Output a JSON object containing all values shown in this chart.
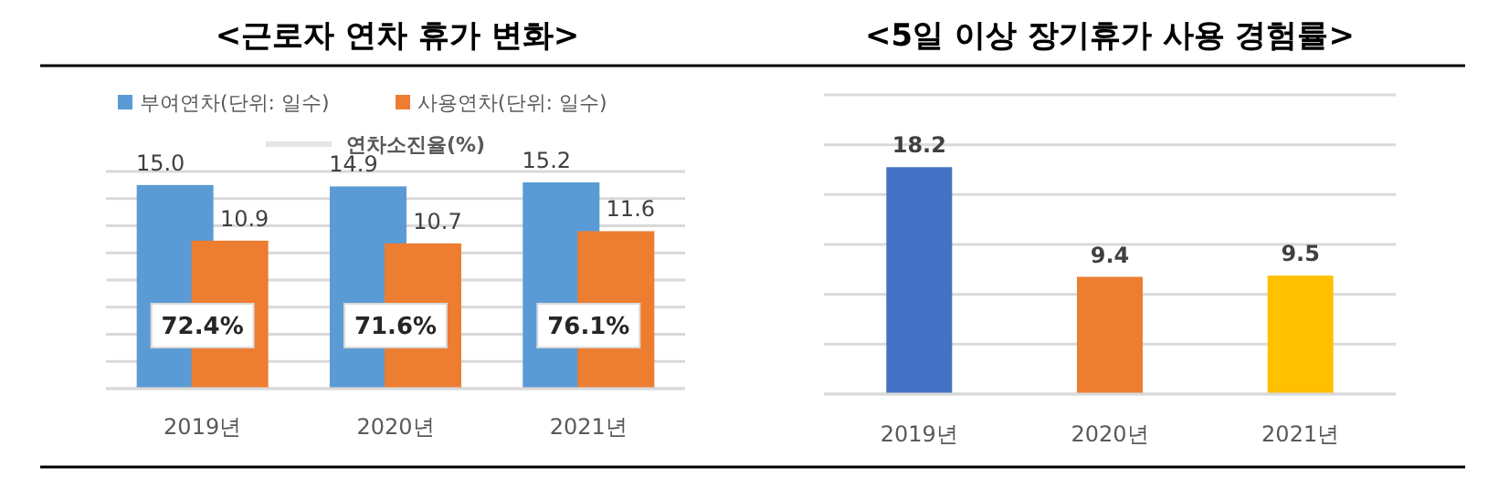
{
  "chart_data": [
    {
      "type": "bar",
      "title": "<근로자 연차 휴가 변화>",
      "categories": [
        "2019년",
        "2020년",
        "2021년"
      ],
      "series": [
        {
          "name": "부여연차(단위: 일수)",
          "color": "#5b9bd5",
          "values": [
            15.0,
            14.9,
            15.2
          ],
          "value_labels": [
            "15.0",
            "14.9",
            "15.2"
          ]
        },
        {
          "name": "사용연차(단위: 일수)",
          "color": "#ed7d31",
          "values": [
            10.9,
            10.7,
            11.6
          ],
          "value_labels": [
            "10.9",
            "10.7",
            "11.6"
          ]
        },
        {
          "name": "연차소진율(%)",
          "type": "line",
          "color": "#e4e4e4",
          "values": [
            null,
            null,
            null
          ]
        }
      ],
      "ylim": [
        0,
        16
      ],
      "yticks": [
        {
          "value": 0,
          "label": null
        },
        {
          "value": 2,
          "label": null
        },
        {
          "value": 4,
          "label": null
        },
        {
          "value": 6,
          "label": null
        },
        {
          "value": 8,
          "label": null
        },
        {
          "value": 10,
          "label": null
        },
        {
          "value": 12,
          "label": null
        },
        {
          "value": 14,
          "label": null
        },
        {
          "value": 16,
          "label": null
        }
      ],
      "annotations": [
        "72.4%",
        "71.6%",
        "76.1%"
      ],
      "grid": "y",
      "legend": "top",
      "tick_labels": "x"
    },
    {
      "type": "bar",
      "title": "<5일 이상 장기휴가 사용 경험률>",
      "categories": [
        "2019년",
        "2020년",
        "2021년"
      ],
      "values": [
        18.2,
        9.4,
        9.5
      ],
      "colors": [
        "#4472c4",
        "#ed7d31",
        "#ffc000"
      ],
      "ylim": [
        0,
        24
      ],
      "yticks": [
        {
          "value": 0,
          "label": null
        },
        {
          "value": 4,
          "label": null
        },
        {
          "value": 8,
          "label": null
        },
        {
          "value": 12,
          "label": null
        },
        {
          "value": 16,
          "label": null
        },
        {
          "value": 20,
          "label": null
        },
        {
          "value": 24,
          "label": null
        }
      ],
      "grid": "y",
      "tick_labels": "x",
      "data_labels": true
    }
  ]
}
